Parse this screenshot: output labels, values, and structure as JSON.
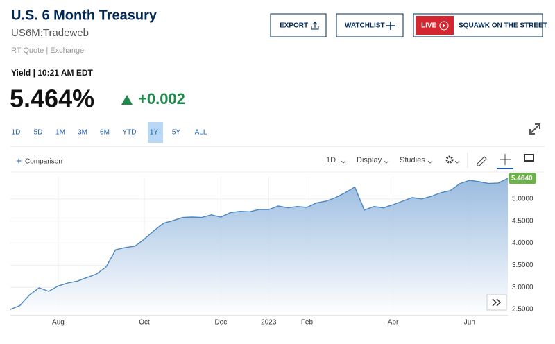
{
  "header": {
    "title": "U.S. 6 Month Treasury",
    "symbol": "US6M:Tradeweb",
    "quote_source": "RT Quote | Exchange",
    "yield_time": "Yield | 10:21 AM EDT",
    "price": "5.464%",
    "change": "+0.002"
  },
  "buttons": {
    "export": "EXPORT",
    "watchlist": "WATCHLIST",
    "live": "LIVE",
    "squawk": "SQUAWK ON THE STREET"
  },
  "ranges": {
    "items": [
      "1D",
      "5D",
      "1M",
      "3M",
      "6M",
      "YTD",
      "1Y",
      "5Y",
      "ALL"
    ],
    "selected": "1Y"
  },
  "toolbar": {
    "comparison": "Comparison",
    "interval": "1D",
    "display": "Display",
    "studies": "Studies"
  },
  "chart_data": {
    "type": "area",
    "color": "#4a86c1",
    "grid": true,
    "categories": [
      null,
      null,
      null,
      null,
      null,
      "Aug",
      null,
      null,
      null,
      null,
      null,
      null,
      null,
      null,
      "Oct",
      null,
      null,
      null,
      null,
      null,
      null,
      null,
      "Dec",
      null,
      null,
      null,
      null,
      "2023",
      null,
      null,
      null,
      "Feb",
      null,
      null,
      null,
      null,
      null,
      null,
      null,
      null,
      "Apr",
      null,
      null,
      null,
      null,
      null,
      null,
      null,
      "Jun",
      null,
      null,
      null,
      null
    ],
    "values": [
      2.5,
      2.59,
      2.83,
      2.99,
      2.91,
      3.03,
      3.1,
      3.14,
      3.22,
      3.3,
      3.46,
      3.85,
      3.9,
      3.93,
      4.09,
      4.28,
      4.45,
      4.51,
      4.58,
      4.59,
      4.58,
      4.64,
      4.59,
      4.69,
      4.72,
      4.71,
      4.76,
      4.76,
      4.84,
      4.8,
      4.83,
      4.81,
      4.91,
      4.95,
      5.03,
      5.14,
      5.27,
      4.75,
      4.83,
      4.8,
      4.87,
      4.95,
      5.03,
      5.0,
      5.06,
      5.14,
      5.19,
      5.35,
      5.42,
      5.39,
      5.35,
      5.36,
      5.464
    ],
    "current_value": {
      "value": 5.464,
      "label": "5.4640"
    },
    "ylim": [
      2.36,
      5.5
    ],
    "yticks": [
      {
        "value": 2.5,
        "label": "2.5000"
      },
      {
        "value": 3.0,
        "label": "3.0000"
      },
      {
        "value": 3.5,
        "label": "3.5000"
      },
      {
        "value": 4.0,
        "label": "4.0000"
      },
      {
        "value": 4.5,
        "label": "4.5000"
      },
      {
        "value": 5.0,
        "label": "5.0000"
      }
    ]
  }
}
